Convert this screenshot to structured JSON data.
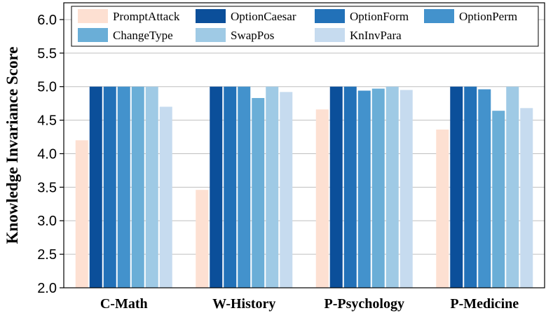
{
  "chart_data": {
    "type": "bar",
    "title": "",
    "xlabel": "",
    "ylabel": "Knowledge Invariance Score",
    "ylim": [
      2.0,
      6.25
    ],
    "yticks": [
      2.0,
      2.5,
      3.0,
      3.5,
      4.0,
      4.5,
      5.0,
      5.5,
      6.0
    ],
    "ytick_labels": [
      "2.0",
      "2.5",
      "3.0",
      "3.5",
      "4.0",
      "4.5",
      "5.0",
      "5.5",
      "6.0"
    ],
    "grid": "horizontal",
    "legend_position": "top",
    "categories": [
      "C-Math",
      "W-History",
      "P-Psychology",
      "P-Medicine"
    ],
    "series": [
      {
        "name": "PromptAttack",
        "color": "#fde0d2",
        "values": [
          4.2,
          3.46,
          4.66,
          4.36
        ]
      },
      {
        "name": "OptionCaesar",
        "color": "#0b4f9a",
        "values": [
          5.0,
          5.0,
          5.0,
          5.0
        ]
      },
      {
        "name": "OptionForm",
        "color": "#2271b8",
        "values": [
          5.0,
          5.0,
          5.0,
          5.0
        ]
      },
      {
        "name": "OptionPerm",
        "color": "#4392cc",
        "values": [
          5.0,
          5.0,
          4.94,
          4.96
        ]
      },
      {
        "name": "ChangeType",
        "color": "#6aaed7",
        "values": [
          5.0,
          4.83,
          4.97,
          4.64
        ]
      },
      {
        "name": "SwapPos",
        "color": "#9fcae5",
        "values": [
          5.0,
          5.0,
          5.0,
          5.0
        ]
      },
      {
        "name": "KnInvPara",
        "color": "#c6dbef",
        "values": [
          4.7,
          4.92,
          4.95,
          4.68
        ]
      }
    ]
  }
}
